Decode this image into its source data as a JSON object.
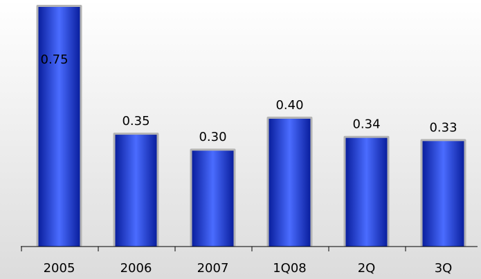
{
  "chart_data": {
    "type": "bar",
    "title": "",
    "xlabel": "",
    "ylabel": "",
    "categories": [
      "2005",
      "2006",
      "2007",
      "1Q08",
      "2Q",
      "3Q"
    ],
    "values": [
      0.75,
      0.35,
      0.3,
      0.4,
      0.34,
      0.33
    ],
    "value_labels": [
      "0.75",
      "0.35",
      "0.30",
      "0.40",
      "0.34",
      "0.33"
    ],
    "ylim": [
      0,
      0.75
    ],
    "grid": false,
    "legend": "none",
    "colors": {
      "bar_dark": "#0a1f9e",
      "bar_light": "#4a6cff",
      "bar_outline": "#b4b4b4",
      "background_top": "#ffffff",
      "background_bottom": "#dcdcdc",
      "axis": "#000000"
    }
  }
}
